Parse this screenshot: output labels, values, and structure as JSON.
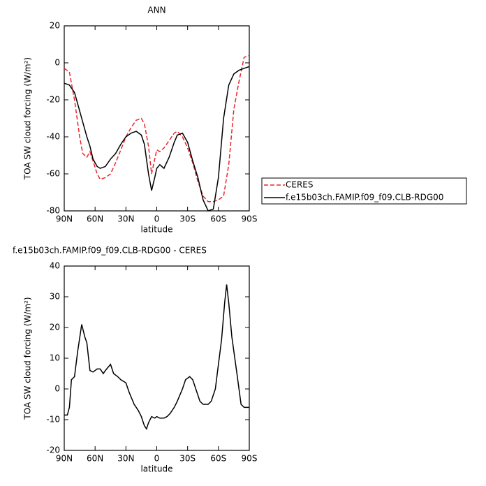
{
  "chart_data": [
    {
      "type": "line",
      "title": "ANN",
      "xlabel": "latitude",
      "ylabel": "TOA SW cloud forcing (W/m²)",
      "x": [
        90,
        85,
        80,
        75,
        72,
        68,
        65,
        62,
        58,
        55,
        50,
        45,
        40,
        35,
        30,
        25,
        20,
        15,
        12,
        8,
        5,
        2,
        0,
        -3,
        -7,
        -12,
        -17,
        -20,
        -25,
        -30,
        -35,
        -40,
        -45,
        -50,
        -55,
        -60,
        -65,
        -70,
        -75,
        -80,
        -85,
        -90
      ],
      "series": [
        {
          "name": "CERES",
          "color": "#e8262b",
          "linestyle": "dashed",
          "values": [
            -3,
            -5,
            -20,
            -40,
            -49,
            -51,
            -48,
            -53,
            -60,
            -63,
            -62,
            -60,
            -54,
            -47,
            -40,
            -35,
            -31,
            -30,
            -33,
            -45,
            -60,
            -52,
            -47,
            -48,
            -46,
            -42,
            -38,
            -37,
            -40,
            -46,
            -54,
            -64,
            -72,
            -75,
            -75,
            -74,
            -72,
            -55,
            -25,
            -10,
            3,
            4
          ]
        },
        {
          "name": "f.e15b03ch.FAMIP.f09_f09.CLB-RDG00",
          "color": "#000000",
          "linestyle": "solid",
          "values": [
            -11,
            -12,
            -16,
            -26,
            -32,
            -40,
            -45,
            -52,
            -56,
            -57,
            -56,
            -52,
            -49,
            -44,
            -40,
            -38,
            -37,
            -39,
            -44,
            -60,
            -69,
            -62,
            -57,
            -55,
            -57,
            -51,
            -43,
            -39,
            -38,
            -43,
            -53,
            -62,
            -74,
            -80,
            -79,
            -62,
            -30,
            -12,
            -6,
            -4,
            -3,
            -2
          ]
        }
      ],
      "xlim": [
        90,
        -90
      ],
      "xticks": [
        {
          "value": 90,
          "label": "90N"
        },
        {
          "value": 60,
          "label": "60N"
        },
        {
          "value": 30,
          "label": "30N"
        },
        0,
        {
          "value": -30,
          "label": "30S"
        },
        {
          "value": -60,
          "label": "60S"
        },
        {
          "value": -90,
          "label": "90S"
        }
      ],
      "ylim": [
        -80,
        20
      ],
      "yticks": [
        -80,
        -60,
        -40,
        -20,
        0,
        20
      ],
      "legend": "outside-right"
    },
    {
      "type": "line",
      "title": "f.e15b03ch.FAMIP.f09_f09.CLB-RDG00  -  CERES",
      "xlabel": "latitude",
      "ylabel": "TOA SW cloud forcing (W/m²)",
      "x": [
        90,
        87,
        85,
        83,
        80,
        77,
        73,
        70,
        68,
        65,
        62,
        58,
        55,
        52,
        50,
        45,
        42,
        38,
        35,
        30,
        27,
        22,
        18,
        15,
        12,
        10,
        8,
        5,
        2,
        0,
        -3,
        -7,
        -10,
        -13,
        -17,
        -20,
        -25,
        -28,
        -32,
        -35,
        -38,
        -42,
        -45,
        -50,
        -53,
        -57,
        -60,
        -63,
        -66,
        -68,
        -70,
        -73,
        -78,
        -82,
        -85,
        -90
      ],
      "color": "#000000",
      "values": [
        -8.5,
        -8.5,
        -6,
        3,
        4,
        12,
        21,
        17,
        15,
        6,
        5.5,
        6.5,
        6.5,
        5,
        6,
        8,
        5,
        4,
        3,
        2,
        -1,
        -5,
        -7,
        -9,
        -12,
        -13,
        -11,
        -9,
        -9.5,
        -9,
        -9.5,
        -9.5,
        -9,
        -8,
        -6,
        -4,
        0,
        3,
        4,
        3,
        0,
        -4,
        -5,
        -5,
        -4,
        0,
        8,
        16,
        28,
        34,
        28,
        17,
        5,
        -5,
        -6,
        -6
      ],
      "xlim": [
        90,
        -90
      ],
      "xticks": [
        {
          "value": 90,
          "label": "90N"
        },
        {
          "value": 60,
          "label": "60N"
        },
        {
          "value": 30,
          "label": "30N"
        },
        0,
        {
          "value": -30,
          "label": "30S"
        },
        {
          "value": -60,
          "label": "60S"
        },
        {
          "value": -90,
          "label": "90S"
        }
      ],
      "ylim": [
        -20,
        40
      ],
      "yticks": [
        -20,
        -10,
        0,
        10,
        20,
        30,
        40
      ]
    }
  ]
}
